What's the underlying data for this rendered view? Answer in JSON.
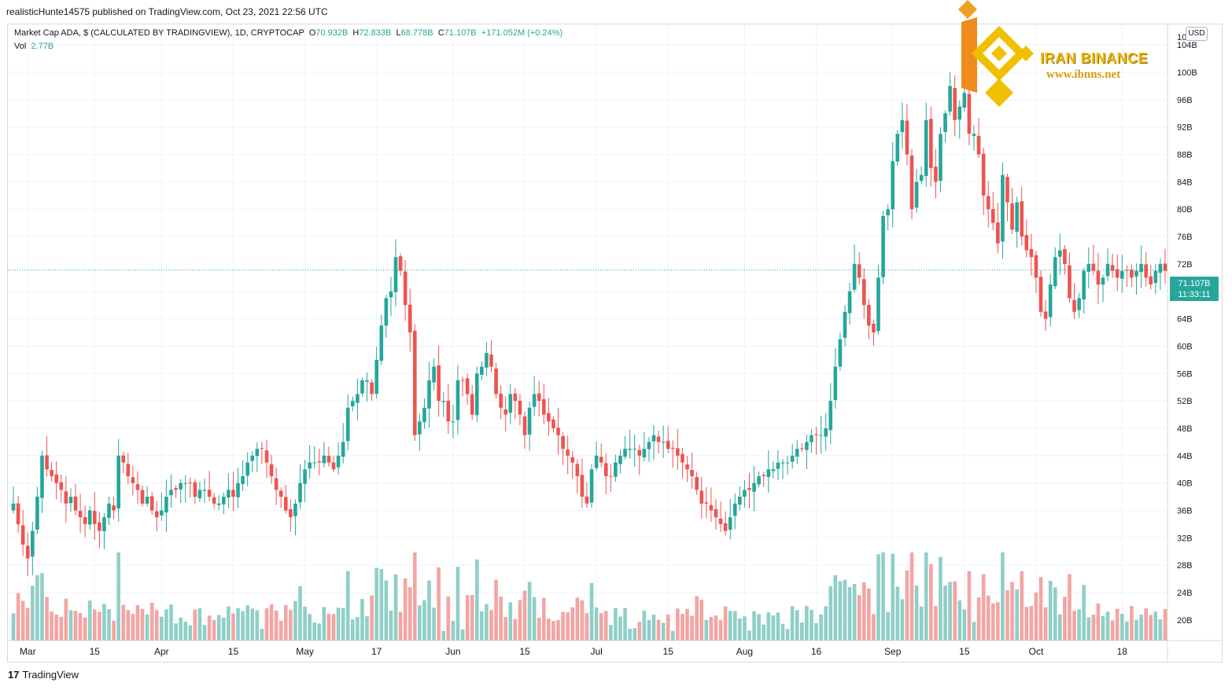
{
  "header": {
    "published": "realisticHunte14575 published on TradingView.com, Oct 23, 2021 22:56 UTC"
  },
  "legend": {
    "title": "Market Cap ADA, $ (CALCULATED BY TRADINGVIEW), 1D, CRYPTOCAP",
    "o_label": "O",
    "o_value": "70.932B",
    "h_label": "H",
    "h_value": "72.833B",
    "l_label": "L",
    "l_value": "68.778B",
    "c_label": "C",
    "c_value": "71.107B",
    "change": "+171.052M (+0.24%)",
    "vol_label": "Vol",
    "vol_value": "2.77B"
  },
  "currency_badge": "USD",
  "price_tag": {
    "price": "71.107B",
    "countdown": "11:33:11"
  },
  "footer": {
    "brand": "TradingView",
    "logo": "17"
  },
  "watermark": {
    "brand": "IRAN BINANCE",
    "url": "www.ibnns.net"
  },
  "colors": {
    "up": "#26a69a",
    "down": "#ef5350",
    "vol_up": "#8fcfc7",
    "vol_down": "#f3a5a3",
    "grid": "#f0f3fa"
  },
  "chart_data": {
    "type": "candlestick",
    "title": "Market Cap ADA, $ (CALCULATED BY TRADINGVIEW), 1D, CRYPTOCAP",
    "ylim": [
      17,
      107
    ],
    "y_ticks": [
      "20B",
      "24B",
      "28B",
      "32B",
      "36B",
      "40B",
      "44B",
      "48B",
      "52B",
      "56B",
      "60B",
      "64B",
      "68B",
      "72B",
      "76B",
      "80B",
      "84B",
      "88B",
      "92B",
      "96B",
      "100B",
      "104B"
    ],
    "y_top_label": "10",
    "x_labels": [
      "Mar",
      "15",
      "Apr",
      "15",
      "May",
      "17",
      "Jun",
      "15",
      "Jul",
      "15",
      "Aug",
      "16",
      "Sep",
      "15",
      "Oct",
      "18"
    ],
    "x_label_index": [
      3,
      17,
      31,
      46,
      61,
      76,
      92,
      107,
      122,
      137,
      153,
      168,
      184,
      199,
      214,
      232
    ],
    "current_price": 71.107,
    "closes": [
      37,
      34,
      31,
      29,
      33,
      38,
      44,
      42,
      41,
      40,
      39,
      37,
      38,
      36,
      35,
      34,
      36,
      34,
      33,
      35,
      37,
      36,
      44,
      43,
      41,
      40,
      39,
      37,
      38,
      36,
      35,
      36,
      38,
      39,
      39,
      40,
      40,
      40,
      38,
      39,
      39,
      38,
      37,
      37,
      38,
      39,
      38,
      40,
      41,
      43,
      44,
      45,
      45,
      43,
      41,
      39,
      38,
      36,
      35,
      37,
      40,
      42,
      43,
      43,
      43,
      44,
      43,
      42,
      44,
      46,
      51,
      52,
      53,
      55,
      55,
      53,
      58,
      63,
      67,
      68,
      73,
      71,
      66,
      62,
      47,
      49,
      51,
      55,
      57,
      52,
      52,
      49,
      49,
      55,
      55,
      53,
      50,
      56,
      57,
      59,
      57,
      53,
      51,
      50,
      53,
      52,
      50,
      47,
      51,
      53,
      52,
      50,
      49,
      48,
      47,
      45,
      44,
      43,
      41,
      38,
      37,
      42,
      44,
      43,
      41,
      41,
      43,
      44,
      45,
      45,
      45,
      44,
      45,
      46,
      47,
      46,
      46,
      45,
      45,
      44,
      43,
      42,
      41,
      39,
      37,
      37,
      36,
      35,
      34,
      33,
      35,
      37,
      38,
      39,
      39,
      40,
      41,
      41,
      42,
      42,
      43,
      43,
      43,
      44,
      45,
      45,
      46,
      47,
      47,
      47,
      48,
      52,
      57,
      61,
      65,
      68,
      72,
      70,
      66,
      63,
      62,
      70,
      79,
      80,
      87,
      91,
      93,
      88,
      80,
      84,
      85,
      93,
      86,
      84,
      91,
      94,
      98,
      93,
      95,
      97,
      91,
      91,
      88,
      82,
      80,
      78,
      75,
      85,
      81,
      77,
      81,
      76,
      74,
      73,
      70,
      65,
      64,
      69,
      73,
      74,
      72,
      67,
      65,
      67,
      71,
      72,
      71,
      69,
      70,
      72,
      71,
      70,
      71,
      71,
      70,
      71,
      72,
      70,
      69,
      71,
      72,
      71
    ]
  }
}
